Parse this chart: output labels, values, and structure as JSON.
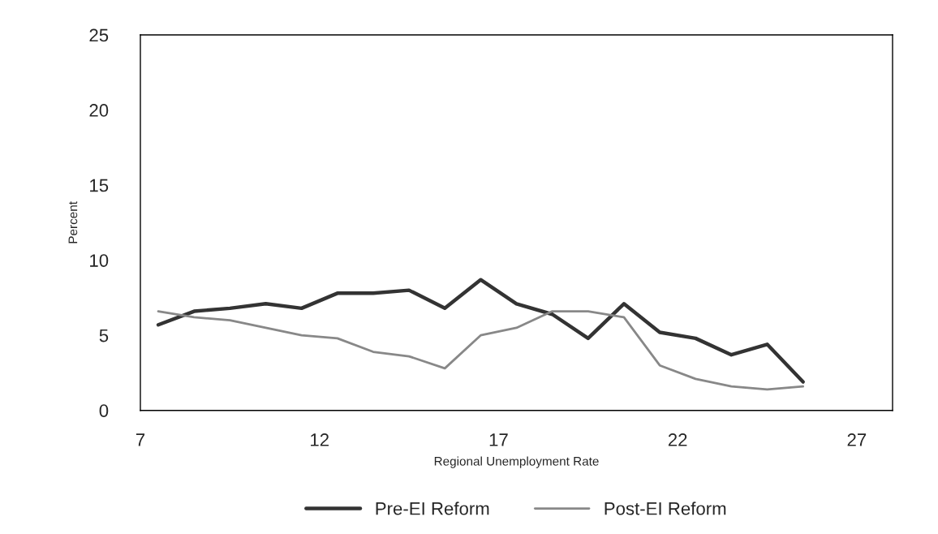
{
  "chart_data": {
    "type": "line",
    "xlabel": "Regional Unemployment Rate",
    "ylabel": "Percent",
    "x": [
      7.5,
      8.5,
      9.5,
      10.5,
      11.5,
      12.5,
      13.5,
      14.5,
      15.5,
      16.5,
      17.5,
      18.5,
      19.5,
      20.5,
      21.5,
      22.5,
      23.5,
      24.5,
      25.5
    ],
    "series": [
      {
        "name": "Pre-EI Reform",
        "color": "#333333",
        "values": [
          5.7,
          6.6,
          6.8,
          7.1,
          6.8,
          7.8,
          7.8,
          8.0,
          6.8,
          8.7,
          7.1,
          6.4,
          4.8,
          7.1,
          5.2,
          4.8,
          3.7,
          4.4,
          1.9
        ]
      },
      {
        "name": "Post-EI Reform",
        "color": "#888888",
        "values": [
          6.6,
          6.2,
          6.0,
          5.5,
          5.0,
          4.8,
          3.9,
          3.6,
          2.8,
          5.0,
          5.5,
          6.6,
          6.6,
          6.2,
          3.0,
          2.1,
          1.6,
          1.4,
          1.6
        ]
      }
    ],
    "xlim": [
      7,
      28
    ],
    "xticks": [
      7,
      12,
      17,
      22,
      27
    ],
    "ylim": [
      0,
      25
    ],
    "yticks": [
      0,
      5,
      10,
      15,
      20,
      25
    ],
    "grid": false,
    "legend": "bottom",
    "marker": "none",
    "line_style": "solid"
  }
}
